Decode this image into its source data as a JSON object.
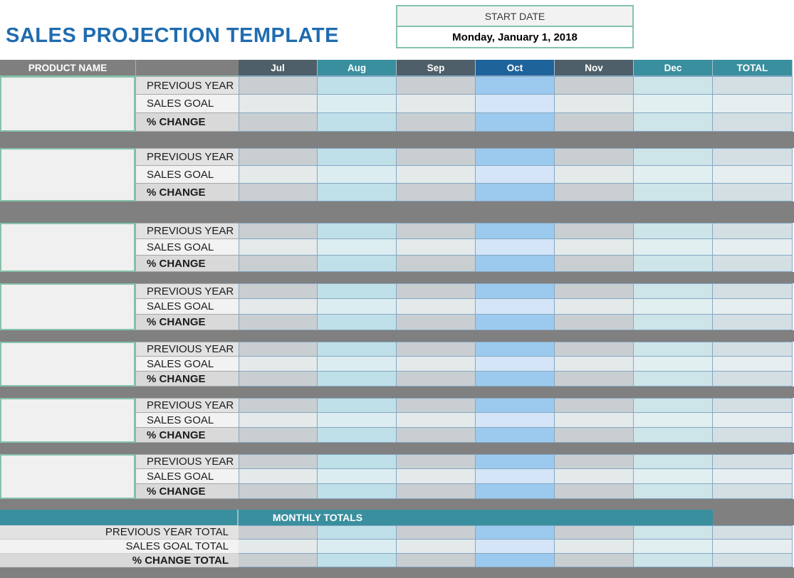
{
  "title": "SALES PROJECTION TEMPLATE",
  "start_date": {
    "label": "START DATE",
    "value": "Monday, January 1, 2018"
  },
  "table": {
    "product_name_header": "PRODUCT NAME",
    "months": [
      {
        "label": "Jul",
        "theme": "gray"
      },
      {
        "label": "Aug",
        "theme": "teal"
      },
      {
        "label": "Sep",
        "theme": "gray"
      },
      {
        "label": "Oct",
        "theme": "blue"
      },
      {
        "label": "Nov",
        "theme": "gray"
      },
      {
        "label": "Dec",
        "theme": "teal2"
      },
      {
        "label": "TOTAL",
        "theme": "total"
      }
    ],
    "row_labels": [
      "PREVIOUS YEAR",
      "SALES GOAL",
      "% CHANGE"
    ],
    "row_keys": [
      "previous-year",
      "sales-goal",
      "pct-change"
    ],
    "products": [
      {
        "name": ""
      },
      {
        "name": ""
      },
      {
        "name": ""
      },
      {
        "name": ""
      },
      {
        "name": ""
      },
      {
        "name": ""
      },
      {
        "name": ""
      }
    ],
    "cell_values": ""
  },
  "totals": {
    "header": "MONTHLY TOTALS",
    "row_labels": [
      "PREVIOUS YEAR TOTAL",
      "SALES GOAL TOTAL",
      "% CHANGE TOTAL"
    ]
  },
  "colors": {
    "title_blue": "#1f6cb0",
    "header_gray": "#7f7f7f",
    "month_dark": "#4e5f69",
    "month_teal": "#3a8f9e",
    "month_blue": "#1f639b",
    "separator_gray": "#808080",
    "green_border": "#85c3a9",
    "grid_border": "#84a8c4",
    "product_bg": "#f0f0f0",
    "label_py_bg": "#e2e2e2",
    "label_sg_bg": "#f2f2f2",
    "label_pc_bg": "#d9d9d9",
    "cell_gray": "#c9ced1",
    "cell_gray_light": "#e4e9ea",
    "cell_teal": "#bfe0e8",
    "cell_teal_light": "#dcedf1",
    "cell_teal2": "#cde4e9",
    "cell_teal2_light": "#e2eff1",
    "cell_blue": "#9ccaee",
    "cell_blue_light": "#d3e5f7",
    "cell_total": "#d4dfe3",
    "cell_total_light": "#e7eef0"
  }
}
